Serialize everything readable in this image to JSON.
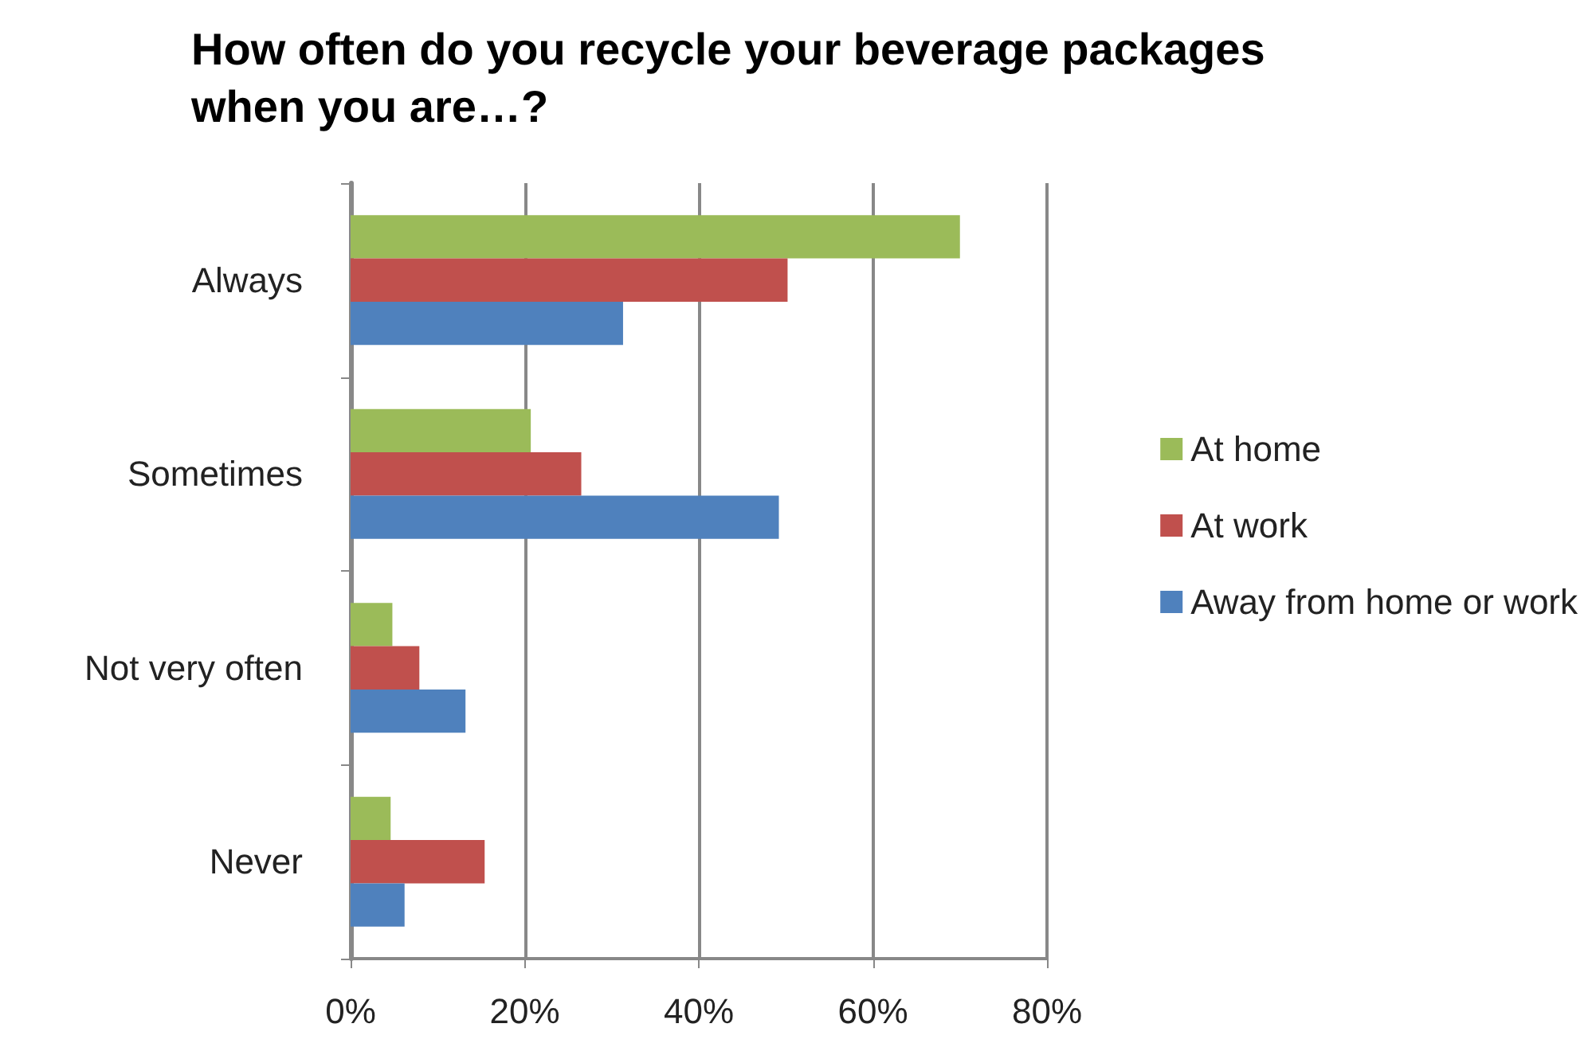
{
  "chart_data": {
    "type": "bar",
    "orientation": "horizontal",
    "title": "How often do you recycle your beverage packages when you are…?",
    "categories": [
      "Always",
      "Sometimes",
      "Not very often",
      "Never"
    ],
    "series": [
      {
        "name": "At home",
        "color": "#9bbb59",
        "values": [
          70,
          20.7,
          4.8,
          4.6
        ]
      },
      {
        "name": "At work",
        "color": "#c0504d",
        "values": [
          50.2,
          26.5,
          7.9,
          15.4
        ]
      },
      {
        "name": "Away from home or work",
        "color": "#4f81bd",
        "values": [
          31.3,
          49.2,
          13.2,
          6.2
        ]
      }
    ],
    "xlim": [
      0,
      80
    ],
    "xticks": [
      {
        "value": 0,
        "label": "0%"
      },
      {
        "value": 20,
        "label": "20%"
      },
      {
        "value": 40,
        "label": "40%"
      },
      {
        "value": 60,
        "label": "60%"
      },
      {
        "value": 80,
        "label": "80%"
      }
    ],
    "grid": "x",
    "legend": "right"
  }
}
